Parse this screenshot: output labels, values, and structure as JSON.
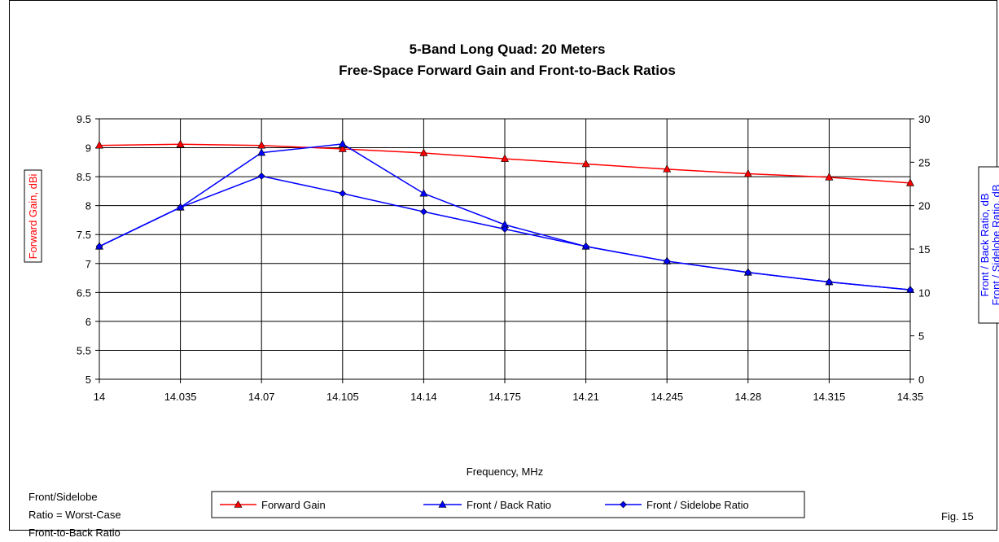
{
  "chart_data": {
    "type": "line",
    "title": "5-Band Long Quad: 20 Meters",
    "subtitle": "Free-Space Forward Gain and Front-to-Back Ratios",
    "xlabel": "Frequency, MHz",
    "ylabel_left": "Forward Gain, dBi",
    "ylabel_right_1": "Front / Back Ratio, dB",
    "ylabel_right_2": "Front / Sidelobe Ratio, dB",
    "x": [
      14,
      14.035,
      14.07,
      14.105,
      14.14,
      14.175,
      14.21,
      14.245,
      14.28,
      14.315,
      14.35
    ],
    "x_tick_labels": [
      "14",
      "14.035",
      "14.07",
      "14.105",
      "14.14",
      "14.175",
      "14.21",
      "14.245",
      "14.28",
      "14.315",
      "14.35"
    ],
    "ylim_left": [
      5,
      9.5
    ],
    "ylim_right": [
      0,
      30
    ],
    "y_left_tick_labels": [
      "9.5",
      "9",
      "8.5",
      "8",
      "7.5",
      "7",
      "6.5",
      "6",
      "5.5",
      "5"
    ],
    "y_right_tick_labels": [
      "30",
      "25",
      "20",
      "15",
      "10",
      "5",
      "0"
    ],
    "grid": true,
    "legend_position": "bottom",
    "series": [
      {
        "name": "Forward Gain",
        "axis": "left",
        "color": "#ff0000",
        "line_color": "#ff0000",
        "marker": "triangle",
        "values": [
          9.04,
          9.06,
          9.04,
          8.98,
          8.91,
          8.81,
          8.72,
          8.63,
          8.55,
          8.49,
          8.39
        ]
      },
      {
        "name": "Front / Back Ratio",
        "axis": "right",
        "color": "#0000ff",
        "line_color": "#0000ff",
        "marker": "triangle",
        "values": [
          15.3,
          19.8,
          26.1,
          27.1,
          21.4,
          17.8,
          15.3,
          13.6,
          12.3,
          11.2,
          10.3
        ]
      },
      {
        "name": "Front / Sidelobe Ratio",
        "axis": "right",
        "color": "#0000ff",
        "line_color": "#0000ff",
        "marker": "diamond",
        "values": [
          15.3,
          19.8,
          23.4,
          21.4,
          19.3,
          17.3,
          15.3,
          13.6,
          12.3,
          11.2,
          10.3
        ]
      }
    ]
  },
  "note": {
    "line1": "Front/Sidelobe",
    "line2": "Ratio = Worst-Case",
    "line3": "Front-to-Back Ratio"
  },
  "figure_label": "Fig. 15",
  "legend": {
    "forward_gain": "Forward Gain",
    "front_back": "Front / Back Ratio",
    "front_sidelobe": "Front / Sidelobe Ratio"
  }
}
